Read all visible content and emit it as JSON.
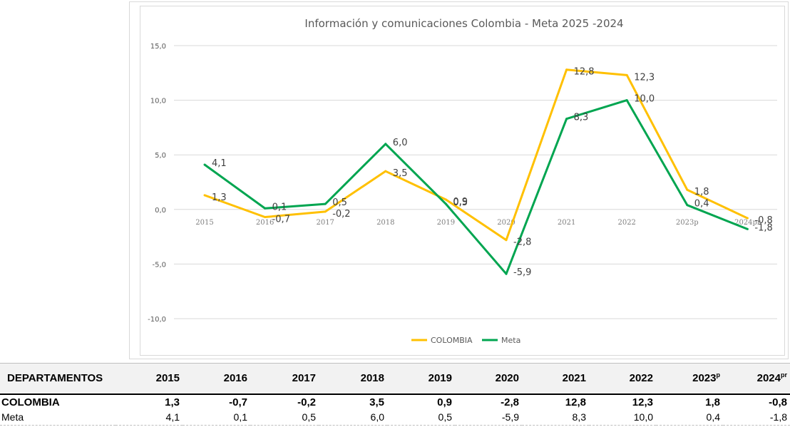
{
  "chart_data": {
    "type": "line",
    "title": "Información y comunicaciones Colombia - Meta 2025 -2024",
    "categories": [
      "2015",
      "2016",
      "2017",
      "2018",
      "2019",
      "2020",
      "2021",
      "2022",
      "2023p",
      "2024pr"
    ],
    "ylim": [
      -10,
      15
    ],
    "yticks": [
      "15,0",
      "10,0",
      "5,0",
      "0,0",
      "-5,0",
      "-10,0"
    ],
    "ytick_values": [
      15,
      10,
      5,
      0,
      -5,
      -10
    ],
    "grid": true,
    "legend_position": "bottom",
    "series": [
      {
        "name": "COLOMBIA",
        "color": "#ffc000",
        "values": [
          1.3,
          -0.7,
          -0.2,
          3.5,
          0.9,
          -2.8,
          12.8,
          12.3,
          1.8,
          -0.8
        ],
        "labels": [
          "1,3",
          "-0,7",
          "-0,2",
          "3,5",
          "0,9",
          "-2,8",
          "12,8",
          "12,3",
          "1,8",
          "-0,8"
        ]
      },
      {
        "name": "Meta",
        "color": "#00a550",
        "values": [
          4.1,
          0.1,
          0.5,
          6.0,
          0.5,
          -5.9,
          8.3,
          10.0,
          0.4,
          -1.8
        ],
        "labels": [
          "4,1",
          "0,1",
          "0,5",
          "6,0",
          "0,5",
          "-5,9",
          "8,3",
          "10,0",
          "0,4",
          "-1,8"
        ]
      }
    ]
  },
  "table": {
    "header_first": "DEPARTAMENTOS",
    "years": [
      "2015",
      "2016",
      "2017",
      "2018",
      "2019",
      "2020",
      "2021",
      "2022",
      "2023",
      "2024"
    ],
    "superscripts": [
      "",
      "",
      "",
      "",
      "",
      "",
      "",
      "",
      "p",
      "pr"
    ],
    "rows": [
      {
        "name": "COLOMBIA",
        "values": [
          "1,3",
          "-0,7",
          "-0,2",
          "3,5",
          "0,9",
          "-2,8",
          "12,8",
          "12,3",
          "1,8",
          "-0,8"
        ]
      },
      {
        "name": "Meta",
        "values": [
          "4,1",
          "0,1",
          "0,5",
          "6,0",
          "0,5",
          "-5,9",
          "8,3",
          "10,0",
          "0,4",
          "-1,8"
        ]
      }
    ]
  }
}
